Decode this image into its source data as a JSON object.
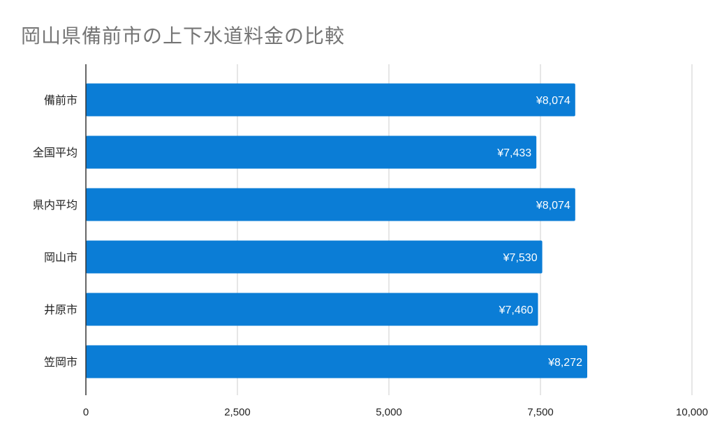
{
  "chart_data": {
    "type": "bar",
    "orientation": "horizontal",
    "title": "岡山県備前市の上下水道料金の比較",
    "xlabel": "",
    "ylabel": "",
    "categories": [
      "備前市",
      "全国平均",
      "県内平均",
      "岡山市",
      "井原市",
      "笠岡市"
    ],
    "values": [
      8074,
      7433,
      8074,
      7530,
      7460,
      8272
    ],
    "data_labels": [
      "¥8,074",
      "¥7,433",
      "¥8,074",
      "¥7,530",
      "¥7,460",
      "¥8,272"
    ],
    "xlim": [
      0,
      10000
    ],
    "x_ticks": [
      0,
      2500,
      5000,
      7500,
      10000
    ],
    "x_tick_labels": [
      "0",
      "2,500",
      "5,000",
      "7,500",
      "10,000"
    ],
    "grid": "vertical",
    "legend": "none",
    "colors": {
      "bar": "#0b7dd6",
      "title": "#757575",
      "grid": "#cccccc",
      "axis": "#333333",
      "data_label": "#ffffff"
    }
  }
}
